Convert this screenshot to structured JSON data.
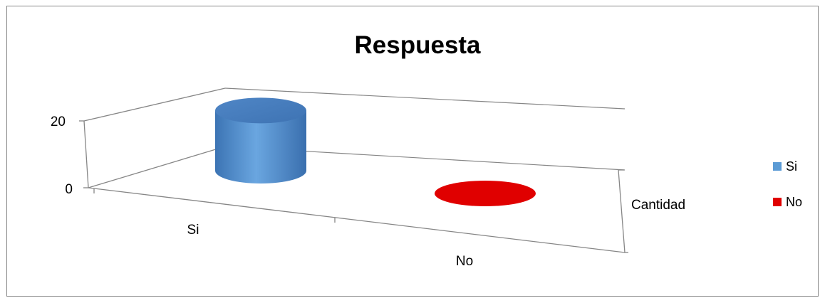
{
  "chart_data": {
    "type": "bar",
    "style": "3d-cylinder",
    "title": "Respuesta",
    "categories": [
      "Si",
      "No"
    ],
    "series_axis_labels": [
      "Cantidad"
    ],
    "y_ticks": [
      "0",
      "20"
    ],
    "ylim": [
      0,
      20
    ],
    "grid": true,
    "legend_position": "right",
    "series": [
      {
        "name": "Si",
        "color": "#5b9bd5",
        "values": [
          18,
          null
        ]
      },
      {
        "name": "No",
        "color": "#e00000",
        "values": [
          null,
          0
        ]
      }
    ]
  }
}
